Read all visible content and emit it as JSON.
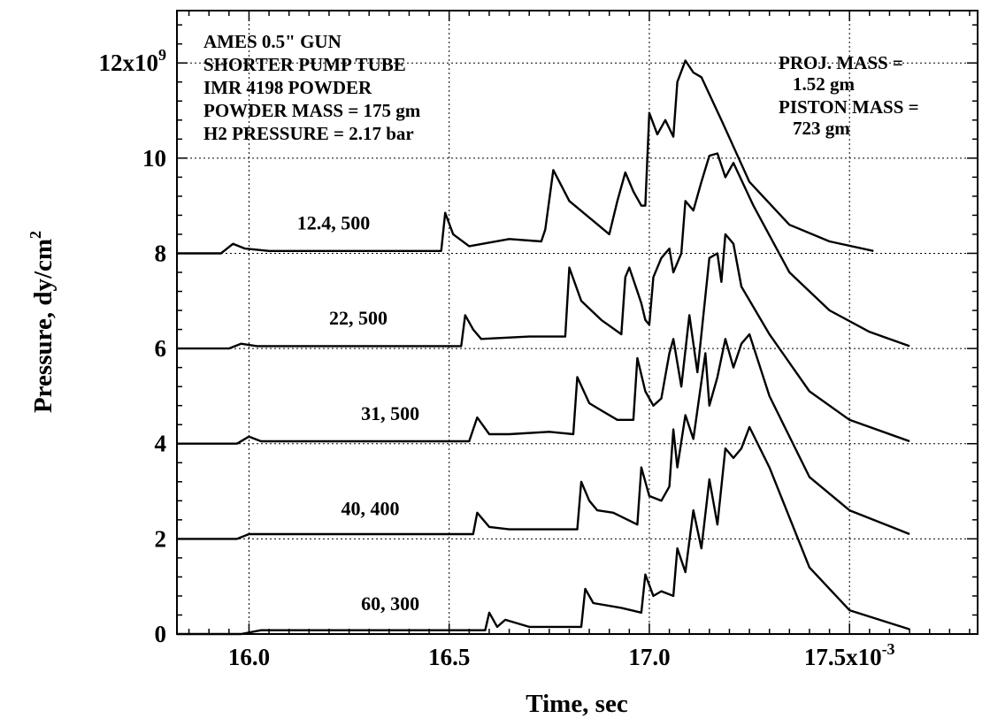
{
  "chart_data": {
    "type": "line",
    "xlabel": "Time, sec",
    "ylabel": "Pressure, dy/cm",
    "ylabel_sup": "2",
    "xlim": [
      15.82,
      17.82
    ],
    "ylim": [
      0,
      13.1
    ],
    "grid": true,
    "x_ticks": [
      {
        "value": 16.0,
        "label": "16.0",
        "sup": ""
      },
      {
        "value": 16.5,
        "label": "16.5",
        "sup": ""
      },
      {
        "value": 17.0,
        "label": "17.0",
        "sup": ""
      },
      {
        "value": 17.5,
        "label": "17.5x10",
        "sup": "-3"
      }
    ],
    "y_ticks": [
      {
        "value": 0,
        "label": "0",
        "sup": ""
      },
      {
        "value": 2,
        "label": "2",
        "sup": ""
      },
      {
        "value": 4,
        "label": "4",
        "sup": ""
      },
      {
        "value": 6,
        "label": "6",
        "sup": ""
      },
      {
        "value": 8,
        "label": "8",
        "sup": ""
      },
      {
        "value": 10,
        "label": "10",
        "sup": ""
      },
      {
        "value": 12,
        "label": "12x10",
        "sup": "9"
      }
    ],
    "annotations_left": [
      "AMES 0.5\" GUN",
      "SHORTER PUMP TUBE",
      "IMR 4198 POWDER",
      "POWDER MASS = 175 gm",
      "H2 PRESSURE = 2.17 bar"
    ],
    "annotations_right": [
      "PROJ. MASS =",
      "1.52 gm",
      "PISTON MASS =",
      "723 gm"
    ],
    "series": [
      {
        "name": "12.4, 500",
        "label_at": [
          16.12,
          8.5
        ],
        "points": [
          [
            15.82,
            8.0
          ],
          [
            15.93,
            8.0
          ],
          [
            15.96,
            8.2
          ],
          [
            15.99,
            8.1
          ],
          [
            16.05,
            8.05
          ],
          [
            16.3,
            8.05
          ],
          [
            16.48,
            8.05
          ],
          [
            16.49,
            8.85
          ],
          [
            16.51,
            8.4
          ],
          [
            16.55,
            8.15
          ],
          [
            16.65,
            8.3
          ],
          [
            16.73,
            8.25
          ],
          [
            16.74,
            8.5
          ],
          [
            16.76,
            9.75
          ],
          [
            16.8,
            9.1
          ],
          [
            16.9,
            8.4
          ],
          [
            16.92,
            9.1
          ],
          [
            16.94,
            9.7
          ],
          [
            16.96,
            9.3
          ],
          [
            16.98,
            9.0
          ],
          [
            16.99,
            9.0
          ],
          [
            17.0,
            10.95
          ],
          [
            17.02,
            10.5
          ],
          [
            17.04,
            10.8
          ],
          [
            17.06,
            10.45
          ],
          [
            17.07,
            11.6
          ],
          [
            17.09,
            12.05
          ],
          [
            17.11,
            11.8
          ],
          [
            17.13,
            11.7
          ],
          [
            17.18,
            10.8
          ],
          [
            17.25,
            9.5
          ],
          [
            17.35,
            8.6
          ],
          [
            17.45,
            8.25
          ],
          [
            17.56,
            8.05
          ]
        ]
      },
      {
        "name": "22, 500",
        "label_at": [
          16.2,
          6.5
        ],
        "points": [
          [
            15.82,
            6.0
          ],
          [
            15.95,
            6.0
          ],
          [
            15.98,
            6.1
          ],
          [
            16.02,
            6.05
          ],
          [
            16.53,
            6.05
          ],
          [
            16.54,
            6.7
          ],
          [
            16.56,
            6.4
          ],
          [
            16.58,
            6.2
          ],
          [
            16.7,
            6.25
          ],
          [
            16.79,
            6.25
          ],
          [
            16.8,
            7.7
          ],
          [
            16.83,
            7.0
          ],
          [
            16.88,
            6.6
          ],
          [
            16.93,
            6.3
          ],
          [
            16.94,
            7.5
          ],
          [
            16.95,
            7.7
          ],
          [
            16.97,
            7.2
          ],
          [
            16.98,
            6.95
          ],
          [
            16.99,
            6.6
          ],
          [
            17.0,
            6.5
          ],
          [
            17.01,
            7.5
          ],
          [
            17.03,
            7.9
          ],
          [
            17.05,
            8.1
          ],
          [
            17.06,
            7.6
          ],
          [
            17.08,
            8.0
          ],
          [
            17.09,
            9.1
          ],
          [
            17.11,
            8.9
          ],
          [
            17.13,
            9.5
          ],
          [
            17.15,
            10.05
          ],
          [
            17.17,
            10.1
          ],
          [
            17.19,
            9.6
          ],
          [
            17.21,
            9.9
          ],
          [
            17.26,
            9.0
          ],
          [
            17.35,
            7.6
          ],
          [
            17.45,
            6.8
          ],
          [
            17.55,
            6.35
          ],
          [
            17.65,
            6.05
          ]
        ]
      },
      {
        "name": "31, 500",
        "label_at": [
          16.28,
          4.5
        ],
        "points": [
          [
            15.82,
            4.0
          ],
          [
            15.97,
            4.0
          ],
          [
            16.0,
            4.15
          ],
          [
            16.03,
            4.05
          ],
          [
            16.55,
            4.05
          ],
          [
            16.57,
            4.55
          ],
          [
            16.6,
            4.2
          ],
          [
            16.65,
            4.2
          ],
          [
            16.75,
            4.25
          ],
          [
            16.81,
            4.2
          ],
          [
            16.82,
            5.4
          ],
          [
            16.85,
            4.85
          ],
          [
            16.88,
            4.7
          ],
          [
            16.92,
            4.5
          ],
          [
            16.96,
            4.5
          ],
          [
            16.97,
            5.8
          ],
          [
            16.99,
            5.1
          ],
          [
            17.01,
            4.8
          ],
          [
            17.03,
            4.95
          ],
          [
            17.05,
            5.9
          ],
          [
            17.06,
            6.2
          ],
          [
            17.08,
            5.2
          ],
          [
            17.1,
            6.7
          ],
          [
            17.12,
            5.5
          ],
          [
            17.15,
            7.9
          ],
          [
            17.17,
            8.0
          ],
          [
            17.18,
            7.4
          ],
          [
            17.19,
            8.4
          ],
          [
            17.21,
            8.2
          ],
          [
            17.23,
            7.3
          ],
          [
            17.3,
            6.3
          ],
          [
            17.4,
            5.1
          ],
          [
            17.5,
            4.5
          ],
          [
            17.65,
            4.05
          ]
        ]
      },
      {
        "name": "40, 400",
        "label_at": [
          16.23,
          2.5
        ],
        "points": [
          [
            15.82,
            2.0
          ],
          [
            15.97,
            2.0
          ],
          [
            16.0,
            2.1
          ],
          [
            16.05,
            2.1
          ],
          [
            16.56,
            2.1
          ],
          [
            16.57,
            2.55
          ],
          [
            16.6,
            2.25
          ],
          [
            16.65,
            2.2
          ],
          [
            16.82,
            2.2
          ],
          [
            16.83,
            3.2
          ],
          [
            16.85,
            2.8
          ],
          [
            16.87,
            2.6
          ],
          [
            16.91,
            2.55
          ],
          [
            16.97,
            2.3
          ],
          [
            16.98,
            3.5
          ],
          [
            17.0,
            2.9
          ],
          [
            17.03,
            2.8
          ],
          [
            17.05,
            3.1
          ],
          [
            17.06,
            4.3
          ],
          [
            17.07,
            3.5
          ],
          [
            17.09,
            4.6
          ],
          [
            17.11,
            4.1
          ],
          [
            17.14,
            5.9
          ],
          [
            17.15,
            4.8
          ],
          [
            17.17,
            5.4
          ],
          [
            17.19,
            6.2
          ],
          [
            17.21,
            5.6
          ],
          [
            17.23,
            6.1
          ],
          [
            17.25,
            6.3
          ],
          [
            17.3,
            5.0
          ],
          [
            17.4,
            3.3
          ],
          [
            17.5,
            2.6
          ],
          [
            17.65,
            2.1
          ]
        ]
      },
      {
        "name": "60, 300",
        "label_at": [
          16.28,
          0.5
        ],
        "points": [
          [
            15.82,
            0.0
          ],
          [
            15.98,
            0.0
          ],
          [
            16.03,
            0.08
          ],
          [
            16.5,
            0.08
          ],
          [
            16.59,
            0.08
          ],
          [
            16.6,
            0.45
          ],
          [
            16.62,
            0.15
          ],
          [
            16.64,
            0.3
          ],
          [
            16.7,
            0.15
          ],
          [
            16.83,
            0.15
          ],
          [
            16.84,
            0.95
          ],
          [
            16.86,
            0.65
          ],
          [
            16.93,
            0.55
          ],
          [
            16.98,
            0.45
          ],
          [
            16.99,
            1.25
          ],
          [
            17.01,
            0.8
          ],
          [
            17.03,
            0.9
          ],
          [
            17.06,
            0.8
          ],
          [
            17.07,
            1.8
          ],
          [
            17.09,
            1.3
          ],
          [
            17.11,
            2.6
          ],
          [
            17.13,
            1.8
          ],
          [
            17.15,
            3.25
          ],
          [
            17.17,
            2.3
          ],
          [
            17.19,
            3.9
          ],
          [
            17.21,
            3.7
          ],
          [
            17.23,
            3.9
          ],
          [
            17.25,
            4.35
          ],
          [
            17.3,
            3.5
          ],
          [
            17.4,
            1.4
          ],
          [
            17.5,
            0.5
          ],
          [
            17.65,
            0.1
          ]
        ]
      }
    ]
  }
}
